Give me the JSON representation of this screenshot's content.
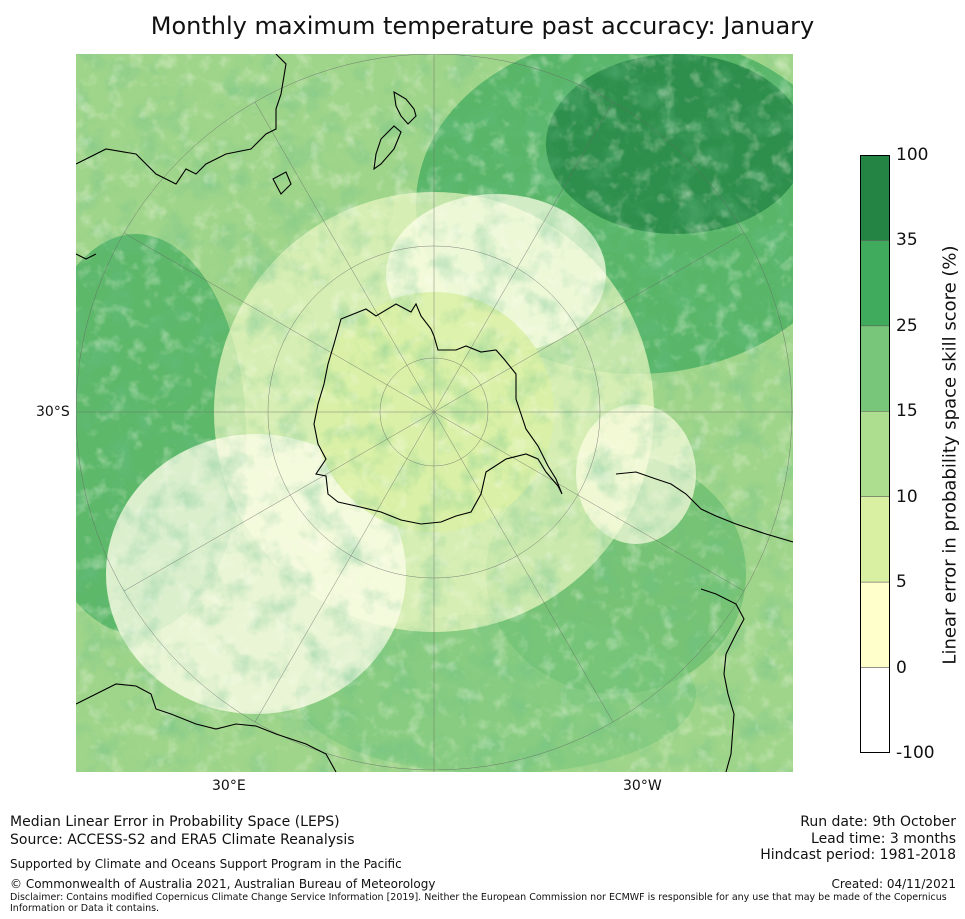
{
  "title": "Monthly maximum temperature past accuracy: January",
  "map": {
    "projection": "south-polar-stereographic",
    "lat_labels": [
      "30°S"
    ],
    "lon_labels": [
      "30°E",
      "30°W"
    ],
    "features": [
      "Antarctica",
      "Australia",
      "New Zealand",
      "South America",
      "Africa"
    ]
  },
  "colorbar": {
    "label": "Linear error in probability space skill score (%)",
    "ticks": [
      "100",
      "35",
      "25",
      "15",
      "10",
      "5",
      "0",
      "-100"
    ],
    "bins": [
      {
        "from": -100,
        "to": 0,
        "color": "#ffffff"
      },
      {
        "from": 0,
        "to": 5,
        "color": "#ffffcc"
      },
      {
        "from": 5,
        "to": 10,
        "color": "#d9f0a3"
      },
      {
        "from": 10,
        "to": 15,
        "color": "#addd8e"
      },
      {
        "from": 15,
        "to": 25,
        "color": "#78c679"
      },
      {
        "from": 25,
        "to": 35,
        "color": "#41ab5d"
      },
      {
        "from": 35,
        "to": 100,
        "color": "#238443"
      }
    ]
  },
  "footer": {
    "leps": "Median Linear Error in Probability Space (LEPS)",
    "source": "Source: ACCESS-S2 and ERA5 Climate Reanalysis",
    "supported": "Supported by Climate and Oceans Support Program in the Pacific",
    "copyright": "© Commonwealth of Australia 2021, Australian Bureau of Meteorology",
    "disclaimer": "Disclaimer: Contains modified Copernicus Climate Change Service Information [2019]. Neither the European Commission nor ECMWF is responsible for any use that may be made of the Copernicus Information or Data it contains.",
    "run_date": "Run date: 9th October",
    "lead_time": "Lead time: 3 months",
    "hindcast": "Hindcast period: 1981-2018",
    "created": "Created: 04/11/2021"
  }
}
